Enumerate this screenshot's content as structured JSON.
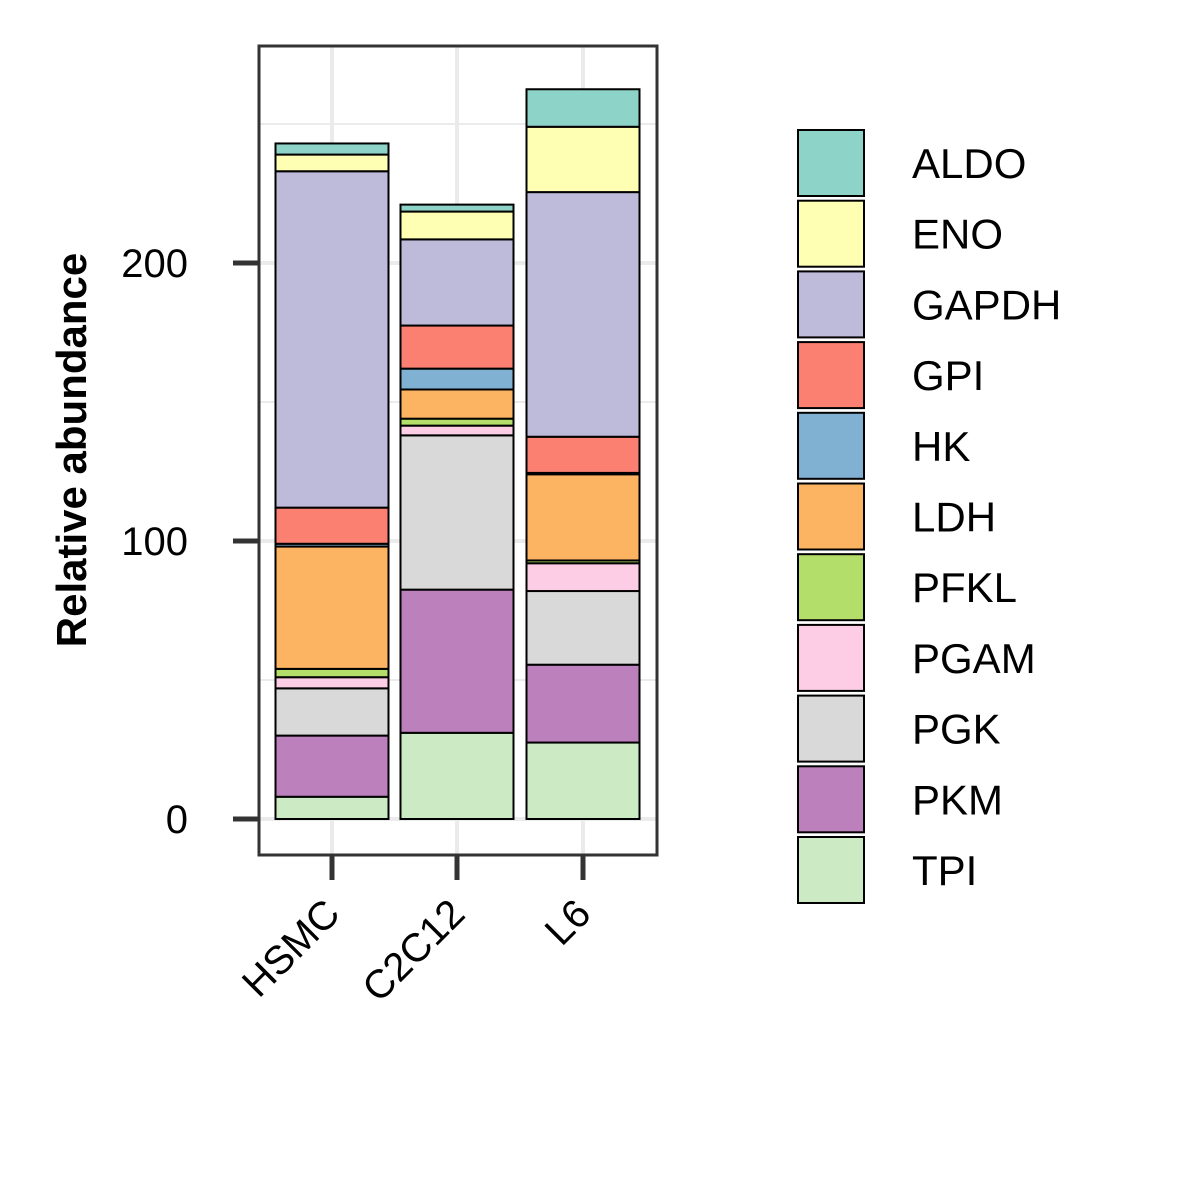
{
  "chart_data": {
    "type": "bar",
    "stacked": true,
    "categories": [
      "HSMC",
      "C2C12",
      "L6"
    ],
    "ylabel": "Relative abundance",
    "xlabel": "",
    "ylim": [
      -13,
      278
    ],
    "yticks": [
      0,
      100,
      200
    ],
    "ytick_labels": [
      "0",
      "100",
      "200"
    ],
    "grid": true,
    "legend_position": "right",
    "series": [
      {
        "name": "TPI",
        "color": "#CCEBC5",
        "values": [
          8,
          31,
          27.5
        ]
      },
      {
        "name": "PKM",
        "color": "#BC80BD",
        "values": [
          22,
          51.5,
          28
        ]
      },
      {
        "name": "PGK",
        "color": "#D9D9D9",
        "values": [
          17,
          55.5,
          26.5
        ]
      },
      {
        "name": "PGAM",
        "color": "#FCCDE5",
        "values": [
          4,
          3.5,
          10
        ]
      },
      {
        "name": "PFKL",
        "color": "#B3DE69",
        "values": [
          3,
          2.5,
          1
        ]
      },
      {
        "name": "LDH",
        "color": "#FDB462",
        "values": [
          44,
          10.5,
          31
        ]
      },
      {
        "name": "HK",
        "color": "#80B1D3",
        "values": [
          1,
          7.5,
          0.5
        ]
      },
      {
        "name": "GPI",
        "color": "#FB8072",
        "values": [
          13,
          15.5,
          13
        ]
      },
      {
        "name": "GAPDH",
        "color": "#BEBADA",
        "values": [
          121,
          31,
          88
        ]
      },
      {
        "name": "ENO",
        "color": "#FFFFB3",
        "values": [
          6,
          10,
          23.5
        ]
      },
      {
        "name": "ALDO",
        "color": "#8DD3C7",
        "values": [
          4,
          2.5,
          13.5
        ]
      }
    ],
    "legend_order": [
      "ALDO",
      "ENO",
      "GAPDH",
      "GPI",
      "HK",
      "LDH",
      "PFKL",
      "PGAM",
      "PGK",
      "PKM",
      "TPI"
    ]
  }
}
